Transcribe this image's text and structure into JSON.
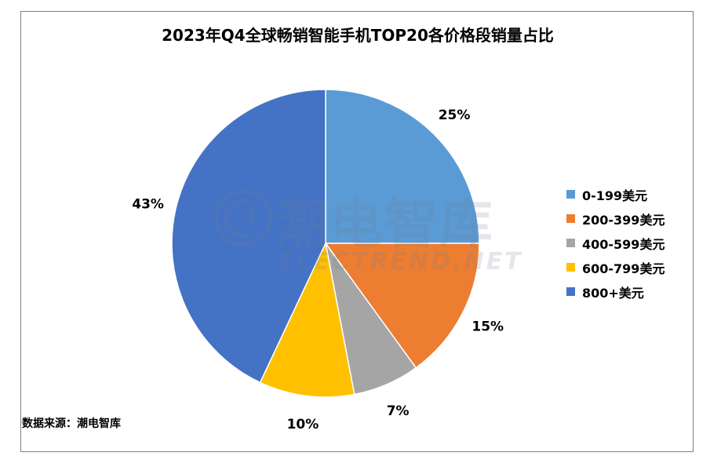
{
  "chart_data": {
    "type": "pie",
    "title": "2023年Q4全球畅销智能手机TOP20各价格段销量占比",
    "categories": [
      "0-199美元",
      "200-399美元",
      "400-599美元",
      "600-799美元",
      "800+美元"
    ],
    "values": [
      25,
      15,
      7,
      10,
      43
    ],
    "labels": [
      "25%",
      "15%",
      "7%",
      "10%",
      "43%"
    ],
    "colors": [
      "#5b9bd5",
      "#ed7d31",
      "#a5a5a5",
      "#ffc000",
      "#4472c4"
    ],
    "legend_position": "right"
  },
  "source": "数据来源：潮电智库",
  "watermark": {
    "text_cn": "潮电智库",
    "text_en": "ELECTREND.NET"
  }
}
